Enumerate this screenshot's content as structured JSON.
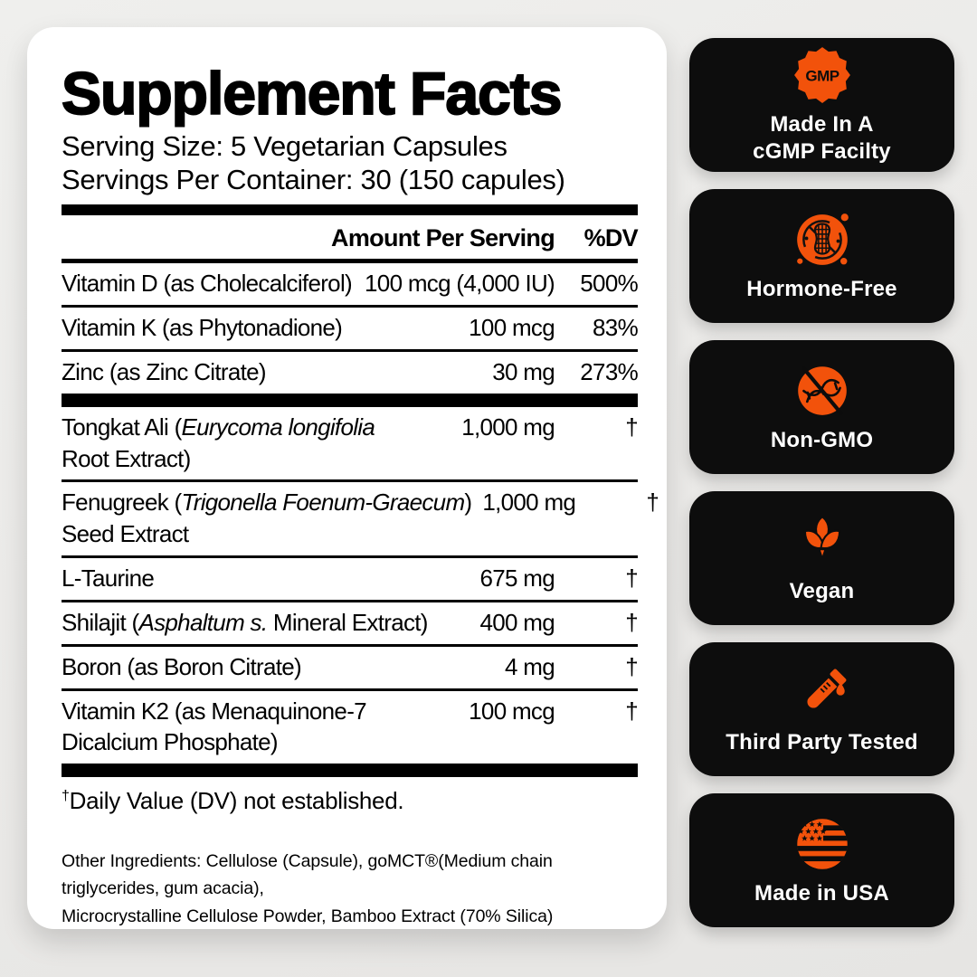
{
  "panel": {
    "title": "Supplement Facts",
    "serving_size": "Serving Size: 5 Vegetarian Capsules",
    "servings_per_container": "Servings Per Container: 30 (150 capules)",
    "columns": {
      "amount_header": "Amount Per Serving",
      "dv_header": "%DV"
    },
    "rows": [
      {
        "section": 1,
        "name": [
          {
            "t": "Vitamin D (as Cholecalciferol)"
          }
        ],
        "amount": "100 mcg (4,000 IU)",
        "dv": "500%"
      },
      {
        "section": 1,
        "name": [
          {
            "t": "Vitamin K (as Phytonadione)"
          }
        ],
        "amount": "100 mcg",
        "dv": "83%"
      },
      {
        "section": 1,
        "name": [
          {
            "t": "Zinc (as Zinc Citrate)"
          }
        ],
        "amount": "30 mg",
        "dv": "273%"
      },
      {
        "section": 2,
        "name": [
          {
            "t": "Tongkat Ali ("
          },
          {
            "t": "Eurycoma longifolia",
            "i": true
          },
          {
            "br": true
          },
          {
            "t": "Root Extract)"
          }
        ],
        "amount": "1,000 mg",
        "dv": "†"
      },
      {
        "section": 2,
        "name": [
          {
            "t": "Fenugreek ("
          },
          {
            "t": "Trigonella Foenum-Graecum",
            "i": true
          },
          {
            "t": ")"
          },
          {
            "br": true
          },
          {
            "t": "Seed Extract"
          }
        ],
        "amount": "1,000 mg",
        "dv": "†"
      },
      {
        "section": 2,
        "name": [
          {
            "t": "L-Taurine"
          }
        ],
        "amount": "675 mg",
        "dv": "†"
      },
      {
        "section": 2,
        "name": [
          {
            "t": "Shilajit ("
          },
          {
            "t": "Asphaltum s.",
            "i": true
          },
          {
            "t": " Mineral Extract)"
          }
        ],
        "amount": "400 mg",
        "dv": "†"
      },
      {
        "section": 2,
        "name": [
          {
            "t": "Boron (as Boron Citrate)"
          }
        ],
        "amount": "4 mg",
        "dv": "†"
      },
      {
        "section": 2,
        "name": [
          {
            "t": "Vitamin K2 (as Menaquinone-7"
          },
          {
            "br": true
          },
          {
            "t": "Dicalcium Phosphate)"
          }
        ],
        "amount": "100 mcg",
        "dv": "†"
      }
    ],
    "footnote_symbol": "†",
    "footnote_text": "Daily Value (DV) not established.",
    "other_ingredients_lines": [
      "Other Ingredients: Cellulose (Capsule), goMCT®(Medium chain triglycerides, gum acacia),",
      "Microcrystalline Cellulose Powder, Bamboo Extract (70% Silica)"
    ]
  },
  "badges": [
    {
      "icon": "gmp-seal-icon",
      "icon_text": "GMP",
      "label_lines": [
        "Made In A",
        "cGMP Facilty"
      ]
    },
    {
      "icon": "hormone-free-icon",
      "label_lines": [
        "Hormone-Free"
      ]
    },
    {
      "icon": "non-gmo-icon",
      "label_lines": [
        "Non-GMO"
      ]
    },
    {
      "icon": "vegan-leaf-icon",
      "label_lines": [
        "Vegan"
      ]
    },
    {
      "icon": "test-tube-icon",
      "label_lines": [
        "Third Party Tested"
      ]
    },
    {
      "icon": "usa-flag-icon",
      "label_lines": [
        "Made in USA"
      ]
    }
  ],
  "colors": {
    "accent_orange": "#F2520B",
    "badge_background": "#0D0D0D",
    "page_background": "#ECECEA",
    "card_background": "#FFFFFF",
    "text_black": "#000000",
    "badge_text_white": "#FFFFFF"
  }
}
